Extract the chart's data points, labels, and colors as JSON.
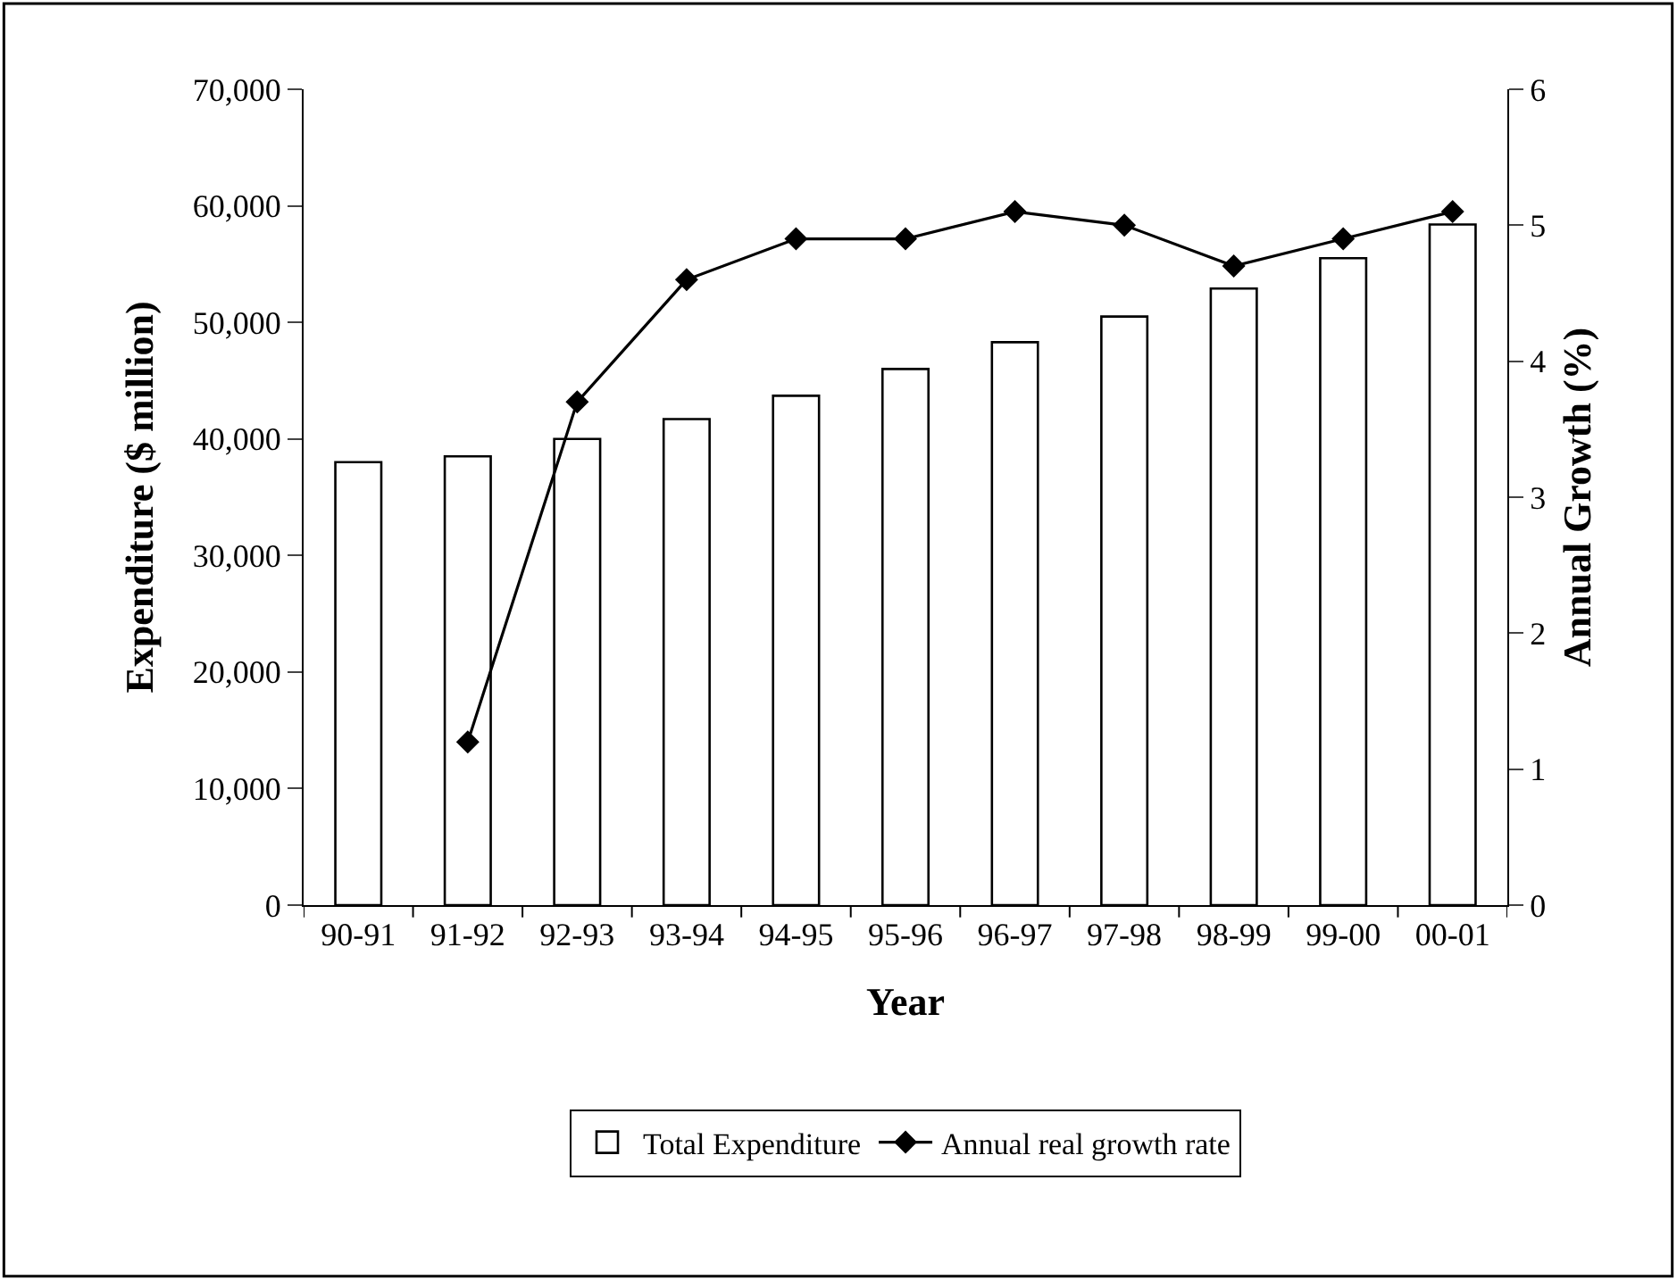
{
  "chart_data": {
    "type": "bar",
    "xlabel": "Year",
    "ylabel": "Expenditure ($ million)",
    "y2label": "Annual Growth (%)",
    "categories": [
      "90-91",
      "91-92",
      "92-93",
      "93-94",
      "94-95",
      "95-96",
      "96-97",
      "97-98",
      "98-99",
      "99-00",
      "00-01"
    ],
    "series": [
      {
        "name": "Total Expenditure",
        "color": "#ffffff",
        "values": [
          38000,
          38500,
          40000,
          41700,
          43700,
          46000,
          48300,
          50500,
          52900,
          55500,
          58400
        ]
      },
      {
        "name": "Annual real growth rate",
        "type": "line",
        "axis": "y2",
        "color": "#000000",
        "marker": "diamond",
        "values": [
          null,
          1.2,
          3.7,
          4.6,
          4.9,
          4.9,
          5.1,
          5.0,
          4.7,
          4.9,
          5.1
        ]
      }
    ],
    "ylim": [
      0,
      70000
    ],
    "yticks": [
      {
        "value": 0,
        "label": "0"
      },
      {
        "value": 10000,
        "label": "10,000"
      },
      {
        "value": 20000,
        "label": "20,000"
      },
      {
        "value": 30000,
        "label": "30,000"
      },
      {
        "value": 40000,
        "label": "40,000"
      },
      {
        "value": 50000,
        "label": "50,000"
      },
      {
        "value": 60000,
        "label": "60,000"
      },
      {
        "value": 70000,
        "label": "70,000"
      }
    ],
    "y2lim": [
      0,
      6
    ],
    "y2ticks": [
      0,
      1,
      2,
      3,
      4,
      5,
      6
    ],
    "legend": "bottom",
    "grid": false
  }
}
